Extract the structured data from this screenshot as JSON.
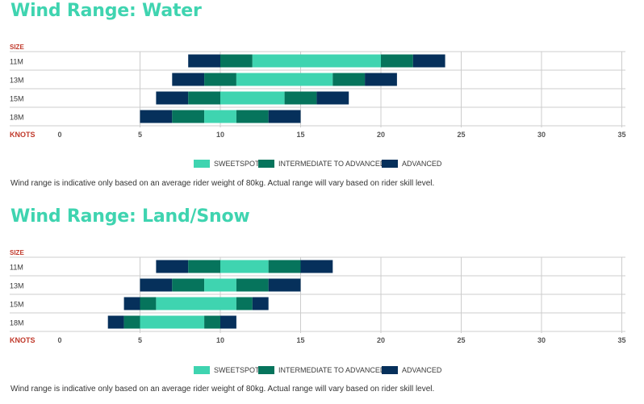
{
  "water": {
    "title": "Wind Range: Water",
    "note": "Wind range is indicative only based on an average rider weight of 80kg. Actual range will vary based on rider skill level."
  },
  "land": {
    "title": "Wind Range: Land/Snow",
    "note": "Wind range is indicative only based on an average rider weight of 80kg. Actual range will vary based on rider skill level."
  },
  "legend": {
    "sweetspot": "SWEETSPOT",
    "intermediate": "INTERMEDIATE TO ADVANCED",
    "advanced": "ADVANCED"
  },
  "colors": {
    "title": "#3fd4b0",
    "sweetspot": "#3fd4b0",
    "intermediate": "#06745c",
    "advanced": "#06305b",
    "axis_label": "#c0392b",
    "grid": "#cccccc"
  },
  "chart_data": [
    {
      "type": "bar",
      "orientation": "horizontal",
      "stacked_ranges": true,
      "ylabel": "SIZE",
      "xlabel": "KNOTS",
      "xlim": [
        0,
        35
      ],
      "xticks": [
        0,
        5,
        10,
        15,
        20,
        25,
        30,
        35
      ],
      "categories": [
        "11M",
        "13M",
        "15M",
        "18M"
      ],
      "segments": [
        [
          {
            "level": "advanced",
            "from": 8,
            "to": 10
          },
          {
            "level": "intermediate",
            "from": 10,
            "to": 12
          },
          {
            "level": "sweetspot",
            "from": 12,
            "to": 20
          },
          {
            "level": "intermediate",
            "from": 20,
            "to": 22
          },
          {
            "level": "advanced",
            "from": 22,
            "to": 24
          }
        ],
        [
          {
            "level": "advanced",
            "from": 7,
            "to": 9
          },
          {
            "level": "intermediate",
            "from": 9,
            "to": 11
          },
          {
            "level": "sweetspot",
            "from": 11,
            "to": 17
          },
          {
            "level": "intermediate",
            "from": 17,
            "to": 19
          },
          {
            "level": "advanced",
            "from": 19,
            "to": 21
          }
        ],
        [
          {
            "level": "advanced",
            "from": 6,
            "to": 8
          },
          {
            "level": "intermediate",
            "from": 8,
            "to": 10
          },
          {
            "level": "sweetspot",
            "from": 10,
            "to": 14
          },
          {
            "level": "intermediate",
            "from": 14,
            "to": 16
          },
          {
            "level": "advanced",
            "from": 16,
            "to": 18
          }
        ],
        [
          {
            "level": "advanced",
            "from": 5,
            "to": 7
          },
          {
            "level": "intermediate",
            "from": 7,
            "to": 9
          },
          {
            "level": "sweetspot",
            "from": 9,
            "to": 11
          },
          {
            "level": "intermediate",
            "from": 11,
            "to": 13
          },
          {
            "level": "advanced",
            "from": 13,
            "to": 15
          }
        ]
      ]
    },
    {
      "type": "bar",
      "orientation": "horizontal",
      "stacked_ranges": true,
      "ylabel": "SIZE",
      "xlabel": "KNOTS",
      "xlim": [
        0,
        35
      ],
      "xticks": [
        0,
        5,
        10,
        15,
        20,
        25,
        30,
        35
      ],
      "categories": [
        "11M",
        "13M",
        "15M",
        "18M"
      ],
      "segments": [
        [
          {
            "level": "advanced",
            "from": 6,
            "to": 8
          },
          {
            "level": "intermediate",
            "from": 8,
            "to": 10
          },
          {
            "level": "sweetspot",
            "from": 10,
            "to": 13
          },
          {
            "level": "intermediate",
            "from": 13,
            "to": 15
          },
          {
            "level": "advanced",
            "from": 15,
            "to": 17
          }
        ],
        [
          {
            "level": "advanced",
            "from": 5,
            "to": 7
          },
          {
            "level": "intermediate",
            "from": 7,
            "to": 9
          },
          {
            "level": "sweetspot",
            "from": 9,
            "to": 11
          },
          {
            "level": "intermediate",
            "from": 11,
            "to": 13
          },
          {
            "level": "advanced",
            "from": 13,
            "to": 15
          }
        ],
        [
          {
            "level": "advanced",
            "from": 4,
            "to": 5
          },
          {
            "level": "intermediate",
            "from": 5,
            "to": 6
          },
          {
            "level": "sweetspot",
            "from": 6,
            "to": 11
          },
          {
            "level": "intermediate",
            "from": 11,
            "to": 12
          },
          {
            "level": "advanced",
            "from": 12,
            "to": 13
          }
        ],
        [
          {
            "level": "advanced",
            "from": 3,
            "to": 4
          },
          {
            "level": "intermediate",
            "from": 4,
            "to": 5
          },
          {
            "level": "sweetspot",
            "from": 5,
            "to": 9
          },
          {
            "level": "intermediate",
            "from": 9,
            "to": 10
          },
          {
            "level": "advanced",
            "from": 10,
            "to": 11
          }
        ]
      ]
    }
  ]
}
